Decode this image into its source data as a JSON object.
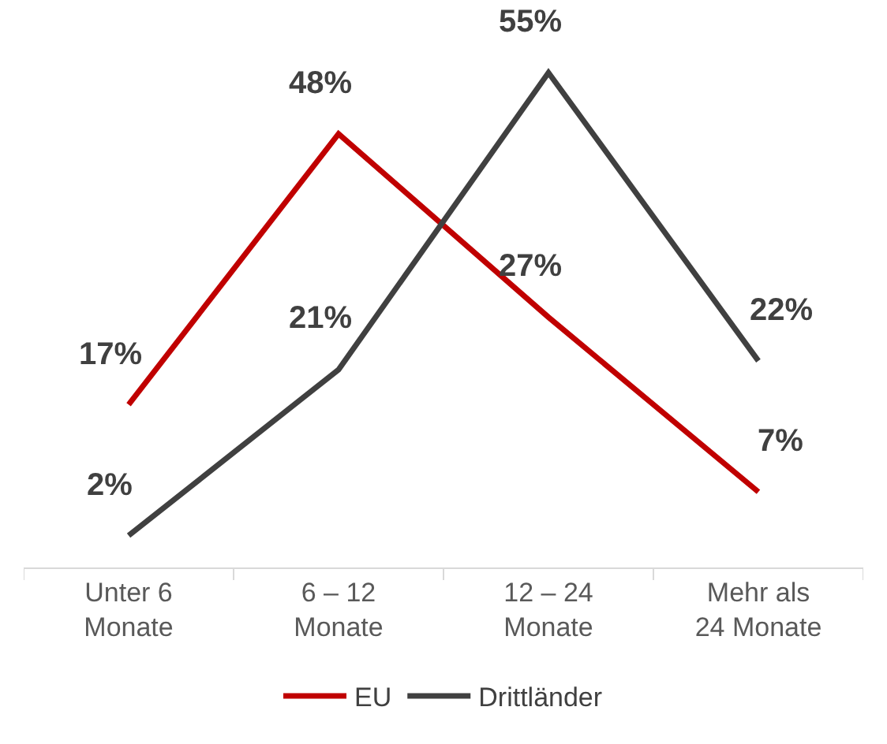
{
  "chart_data": {
    "type": "line",
    "categories": [
      "Unter 6 Monate",
      "6 – 12 Monate",
      "12 – 24 Monate",
      "Mehr als 24 Monate"
    ],
    "series": [
      {
        "name": "EU",
        "color": "#c00000",
        "values": [
          17,
          48,
          27,
          7
        ],
        "value_labels": [
          "17%",
          "48%",
          "27%",
          "7%"
        ]
      },
      {
        "name": "Drittländer",
        "color": "#404040",
        "values": [
          2,
          21,
          55,
          22
        ],
        "value_labels": [
          "2%",
          "21%",
          "55%",
          "22%"
        ]
      }
    ],
    "legend": "bottom",
    "marker": "none",
    "line_style": "solid"
  }
}
